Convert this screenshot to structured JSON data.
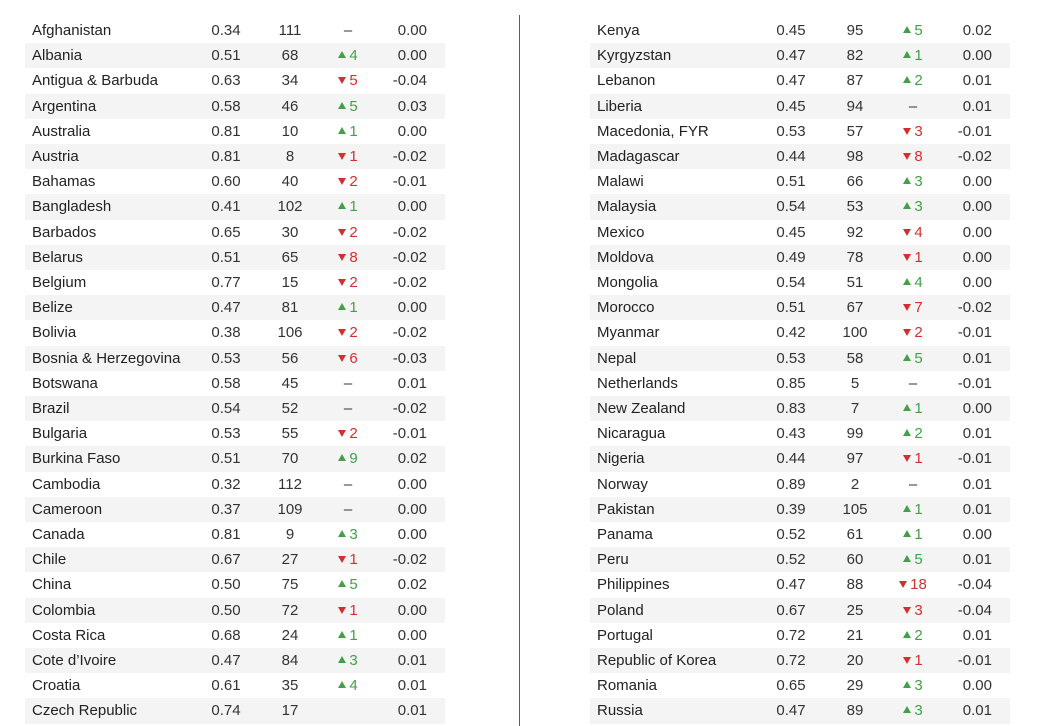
{
  "left_table": {
    "rows": [
      {
        "country": "Afghanistan",
        "score": "0.34",
        "rank": "111",
        "change": "–",
        "score_change": "0.00"
      },
      {
        "country": "Albania",
        "score": "0.51",
        "rank": "68",
        "change": "4",
        "trend": "up",
        "score_change": "0.00"
      },
      {
        "country": "Antigua & Barbuda",
        "score": "0.63",
        "rank": "34",
        "change": "5",
        "trend": "down",
        "score_change": "-0.04"
      },
      {
        "country": "Argentina",
        "score": "0.58",
        "rank": "46",
        "change": "5",
        "trend": "up",
        "score_change": "0.03"
      },
      {
        "country": "Australia",
        "score": "0.81",
        "rank": "10",
        "change": "1",
        "trend": "up",
        "score_change": "0.00"
      },
      {
        "country": "Austria",
        "score": "0.81",
        "rank": "8",
        "change": "1",
        "trend": "down",
        "score_change": "-0.02"
      },
      {
        "country": "Bahamas",
        "score": "0.60",
        "rank": "40",
        "change": "2",
        "trend": "down",
        "score_change": "-0.01"
      },
      {
        "country": "Bangladesh",
        "score": "0.41",
        "rank": "102",
        "change": "1",
        "trend": "up",
        "score_change": "0.00"
      },
      {
        "country": "Barbados",
        "score": "0.65",
        "rank": "30",
        "change": "2",
        "trend": "down",
        "score_change": "-0.02"
      },
      {
        "country": "Belarus",
        "score": "0.51",
        "rank": "65",
        "change": "8",
        "trend": "down",
        "score_change": "-0.02"
      },
      {
        "country": "Belgium",
        "score": "0.77",
        "rank": "15",
        "change": "2",
        "trend": "down",
        "score_change": "-0.02"
      },
      {
        "country": "Belize",
        "score": "0.47",
        "rank": "81",
        "change": "1",
        "trend": "up",
        "score_change": "0.00"
      },
      {
        "country": "Bolivia",
        "score": "0.38",
        "rank": "106",
        "change": "2",
        "trend": "down",
        "score_change": "-0.02"
      },
      {
        "country": "Bosnia & Herzegovina",
        "score": "0.53",
        "rank": "56",
        "change": "6",
        "trend": "down",
        "score_change": "-0.03"
      },
      {
        "country": "Botswana",
        "score": "0.58",
        "rank": "45",
        "change": "–",
        "score_change": "0.01"
      },
      {
        "country": "Brazil",
        "score": "0.54",
        "rank": "52",
        "change": "–",
        "score_change": "-0.02"
      },
      {
        "country": "Bulgaria",
        "score": "0.53",
        "rank": "55",
        "change": "2",
        "trend": "down",
        "score_change": "-0.01"
      },
      {
        "country": "Burkina Faso",
        "score": "0.51",
        "rank": "70",
        "change": "9",
        "trend": "up",
        "score_change": "0.02"
      },
      {
        "country": "Cambodia",
        "score": "0.32",
        "rank": "112",
        "change": "–",
        "score_change": "0.00"
      },
      {
        "country": "Cameroon",
        "score": "0.37",
        "rank": "109",
        "change": "–",
        "score_change": "0.00"
      },
      {
        "country": "Canada",
        "score": "0.81",
        "rank": "9",
        "change": "3",
        "trend": "up",
        "score_change": "0.00"
      },
      {
        "country": "Chile",
        "score": "0.67",
        "rank": "27",
        "change": "1",
        "trend": "down",
        "score_change": "-0.02"
      },
      {
        "country": "China",
        "score": "0.50",
        "rank": "75",
        "change": "5",
        "trend": "up",
        "score_change": "0.02"
      },
      {
        "country": "Colombia",
        "score": "0.50",
        "rank": "72",
        "change": "1",
        "trend": "down",
        "score_change": "0.00"
      },
      {
        "country": "Costa Rica",
        "score": "0.68",
        "rank": "24",
        "change": "1",
        "trend": "up",
        "score_change": "0.00"
      },
      {
        "country": "Cote d’Ivoire",
        "score": "0.47",
        "rank": "84",
        "change": "3",
        "trend": "up",
        "score_change": "0.01"
      },
      {
        "country": "Croatia",
        "score": "0.61",
        "rank": "35",
        "change": "4",
        "trend": "up",
        "score_change": "0.01"
      },
      {
        "country": "Czech Republic",
        "score": "0.74",
        "rank": "17",
        "score_change": "0.01"
      }
    ]
  },
  "right_table": {
    "rows": [
      {
        "country": "Kenya",
        "score": "0.45",
        "rank": "95",
        "change": "5",
        "trend": "up",
        "score_change": "0.02"
      },
      {
        "country": "Kyrgyzstan",
        "score": "0.47",
        "rank": "82",
        "change": "1",
        "trend": "up",
        "score_change": "0.00"
      },
      {
        "country": "Lebanon",
        "score": "0.47",
        "rank": "87",
        "change": "2",
        "trend": "up",
        "score_change": "0.01"
      },
      {
        "country": "Liberia",
        "score": "0.45",
        "rank": "94",
        "change": "–",
        "score_change": "0.01"
      },
      {
        "country": "Macedonia, FYR",
        "score": "0.53",
        "rank": "57",
        "change": "3",
        "trend": "down",
        "score_change": "-0.01"
      },
      {
        "country": "Madagascar",
        "score": "0.44",
        "rank": "98",
        "change": "8",
        "trend": "down",
        "score_change": "-0.02"
      },
      {
        "country": "Malawi",
        "score": "0.51",
        "rank": "66",
        "change": "3",
        "trend": "up",
        "score_change": "0.00"
      },
      {
        "country": "Malaysia",
        "score": "0.54",
        "rank": "53",
        "change": "3",
        "trend": "up",
        "score_change": "0.00"
      },
      {
        "country": "Mexico",
        "score": "0.45",
        "rank": "92",
        "change": "4",
        "trend": "down",
        "score_change": "0.00"
      },
      {
        "country": "Moldova",
        "score": "0.49",
        "rank": "78",
        "change": "1",
        "trend": "down",
        "score_change": "0.00"
      },
      {
        "country": "Mongolia",
        "score": "0.54",
        "rank": "51",
        "change": "4",
        "trend": "up",
        "score_change": "0.00"
      },
      {
        "country": "Morocco",
        "score": "0.51",
        "rank": "67",
        "change": "7",
        "trend": "down",
        "score_change": "-0.02"
      },
      {
        "country": "Myanmar",
        "score": "0.42",
        "rank": "100",
        "change": "2",
        "trend": "down",
        "score_change": "-0.01"
      },
      {
        "country": "Nepal",
        "score": "0.53",
        "rank": "58",
        "change": "5",
        "trend": "up",
        "score_change": "0.01"
      },
      {
        "country": "Netherlands",
        "score": "0.85",
        "rank": "5",
        "change": "–",
        "score_change": "-0.01"
      },
      {
        "country": "New Zealand",
        "score": "0.83",
        "rank": "7",
        "change": "1",
        "trend": "up",
        "score_change": "0.00"
      },
      {
        "country": "Nicaragua",
        "score": "0.43",
        "rank": "99",
        "change": "2",
        "trend": "up",
        "score_change": "0.01"
      },
      {
        "country": "Nigeria",
        "score": "0.44",
        "rank": "97",
        "change": "1",
        "trend": "down",
        "score_change": "-0.01"
      },
      {
        "country": "Norway",
        "score": "0.89",
        "rank": "2",
        "change": "–",
        "score_change": "0.01"
      },
      {
        "country": "Pakistan",
        "score": "0.39",
        "rank": "105",
        "change": "1",
        "trend": "up",
        "score_change": "0.01"
      },
      {
        "country": "Panama",
        "score": "0.52",
        "rank": "61",
        "change": "1",
        "trend": "up",
        "score_change": "0.00"
      },
      {
        "country": "Peru",
        "score": "0.52",
        "rank": "60",
        "change": "5",
        "trend": "up",
        "score_change": "0.01"
      },
      {
        "country": "Philippines",
        "score": "0.47",
        "rank": "88",
        "change": "18",
        "trend": "down",
        "score_change": "-0.04"
      },
      {
        "country": "Poland",
        "score": "0.67",
        "rank": "25",
        "change": "3",
        "trend": "down",
        "score_change": "-0.04"
      },
      {
        "country": "Portugal",
        "score": "0.72",
        "rank": "21",
        "change": "2",
        "trend": "up",
        "score_change": "0.01"
      },
      {
        "country": "Republic of Korea",
        "score": "0.72",
        "rank": "20",
        "change": "1",
        "trend": "down",
        "score_change": "-0.01"
      },
      {
        "country": "Romania",
        "score": "0.65",
        "rank": "29",
        "change": "3",
        "trend": "up",
        "score_change": "0.00"
      },
      {
        "country": "Russia",
        "score": "0.47",
        "rank": "89",
        "change": "3",
        "trend": "up",
        "score_change": "0.01"
      }
    ]
  }
}
